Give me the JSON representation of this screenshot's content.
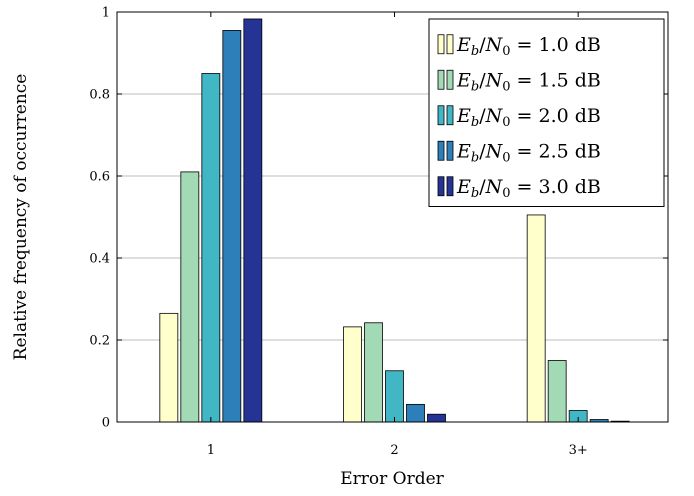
{
  "chart_data": {
    "type": "bar",
    "title": "",
    "xlabel": "Error Order",
    "ylabel": "Relative frequency of occurrence",
    "categories": [
      "1",
      "2",
      "3+"
    ],
    "ylim": [
      0,
      1
    ],
    "yticks": [
      0,
      0.2,
      0.4,
      0.6,
      0.8,
      1
    ],
    "ytick_labels": [
      "0",
      "0.2",
      "0.4",
      "0.6",
      "0.8",
      "1"
    ],
    "grid": "horizontal",
    "legend_position": "top-right",
    "series": [
      {
        "name": "Eb/N0 = 1.0 dB",
        "unit": "dB",
        "color": "#ffffcc",
        "values": [
          0.265,
          0.232,
          0.505
        ]
      },
      {
        "name": "Eb/N0 = 1.5 dB",
        "unit": "dB",
        "color": "#a1dab4",
        "values": [
          0.61,
          0.242,
          0.15
        ]
      },
      {
        "name": "Eb/N0 = 2.0 dB",
        "unit": "dB",
        "color": "#41b6c4",
        "values": [
          0.85,
          0.125,
          0.028
        ]
      },
      {
        "name": "Eb/N0 = 2.5 dB",
        "unit": "dB",
        "color": "#2c7fb8",
        "values": [
          0.955,
          0.043,
          0.006
        ]
      },
      {
        "name": "Eb/N0 = 3.0 dB",
        "unit": "dB",
        "color": "#253494",
        "values": [
          0.983,
          0.019,
          0.002
        ]
      }
    ],
    "legend": {
      "entries": [
        {
          "sym": "E",
          "sub": "b",
          "over": "N",
          "sub2": "0",
          "value": "1.0"
        },
        {
          "sym": "E",
          "sub": "b",
          "over": "N",
          "sub2": "0",
          "value": "1.5"
        },
        {
          "sym": "E",
          "sub": "b",
          "over": "N",
          "sub2": "0",
          "value": "2.0"
        },
        {
          "sym": "E",
          "sub": "b",
          "over": "N",
          "sub2": "0",
          "value": "2.5"
        },
        {
          "sym": "E",
          "sub": "b",
          "over": "N",
          "sub2": "0",
          "value": "3.0"
        }
      ]
    }
  }
}
